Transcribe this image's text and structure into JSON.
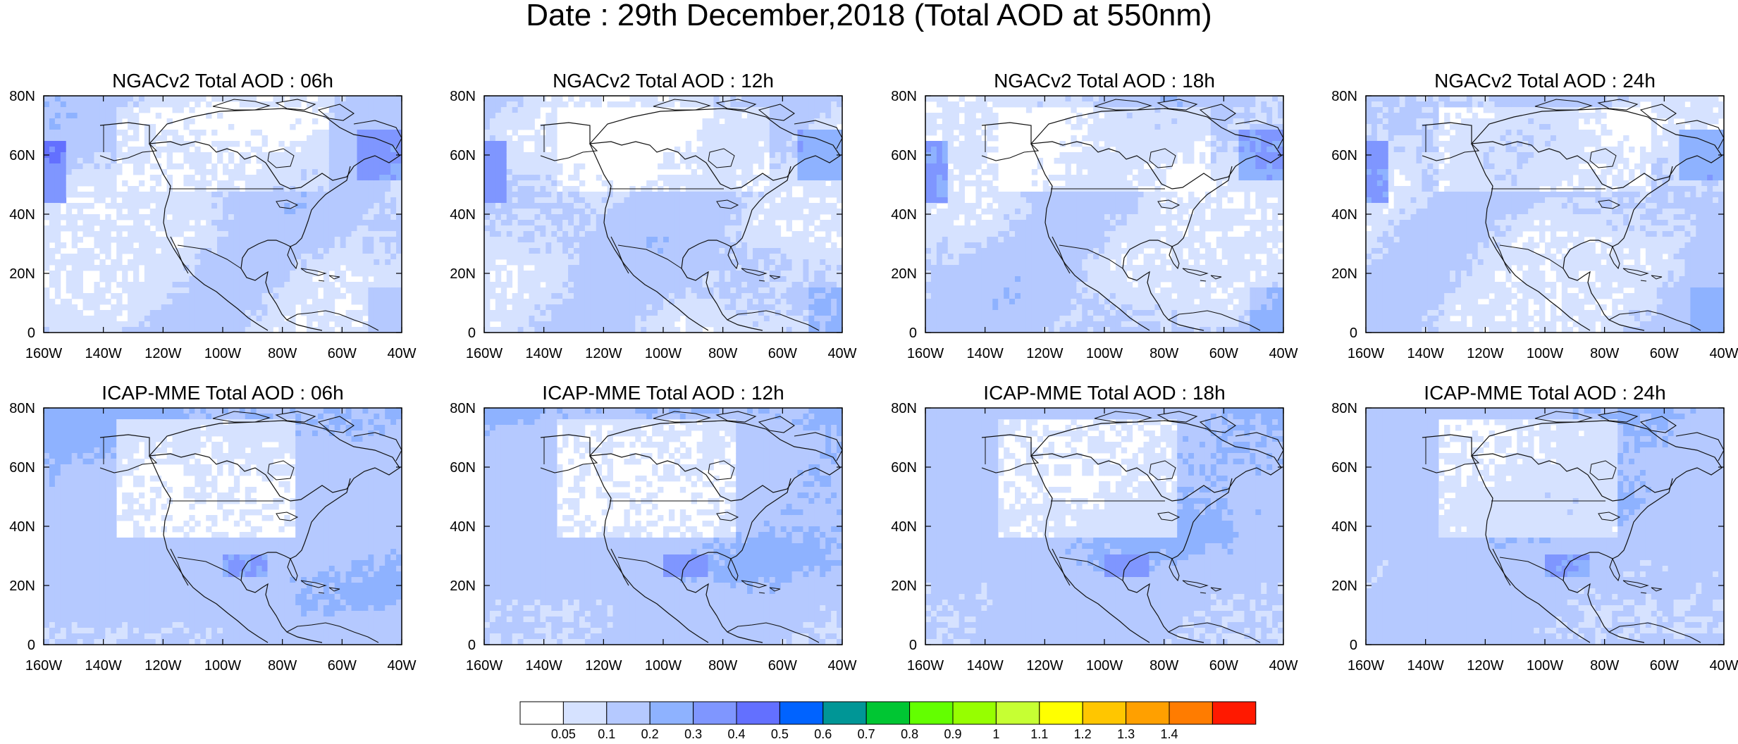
{
  "title": "Date : 29th December,2018 (Total AOD at 550nm)",
  "panels": [
    {
      "title": "NGACv2 Total AOD : 06h",
      "model": "NGACv2",
      "lead": "06h"
    },
    {
      "title": "NGACv2 Total AOD : 12h",
      "model": "NGACv2",
      "lead": "12h"
    },
    {
      "title": "NGACv2 Total AOD : 18h",
      "model": "NGACv2",
      "lead": "18h"
    },
    {
      "title": "NGACv2 Total AOD : 24h",
      "model": "NGACv2",
      "lead": "24h"
    },
    {
      "title": "ICAP-MME Total AOD : 06h",
      "model": "ICAP-MME",
      "lead": "06h"
    },
    {
      "title": "ICAP-MME Total AOD : 12h",
      "model": "ICAP-MME",
      "lead": "12h"
    },
    {
      "title": "ICAP-MME Total AOD : 18h",
      "model": "ICAP-MME",
      "lead": "18h"
    },
    {
      "title": "ICAP-MME Total AOD : 24h",
      "model": "ICAP-MME",
      "lead": "24h"
    }
  ],
  "axes": {
    "lon_ticks": [
      "160W",
      "140W",
      "120W",
      "100W",
      "80W",
      "60W",
      "40W"
    ],
    "lat_ticks": [
      "80N",
      "60N",
      "40N",
      "20N",
      "0"
    ],
    "lon_range": [
      -160,
      -40
    ],
    "lat_range": [
      0,
      80
    ]
  },
  "colorbar": {
    "colors": [
      "#ffffff",
      "#d6e2ff",
      "#b5c9ff",
      "#8eb2ff",
      "#7f96ff",
      "#6370ff",
      "#0063ff",
      "#009696",
      "#00c633",
      "#63ff00",
      "#96ff00",
      "#c6ff33",
      "#ffff00",
      "#ffc600",
      "#ffa000",
      "#ff7c00",
      "#ff1900"
    ],
    "labels": [
      "0.05",
      "0.1",
      "0.2",
      "0.3",
      "0.4",
      "0.5",
      "0.6",
      "0.7",
      "0.8",
      "0.9",
      "1",
      "1.1",
      "1.2",
      "1.3",
      "1.4"
    ]
  }
}
